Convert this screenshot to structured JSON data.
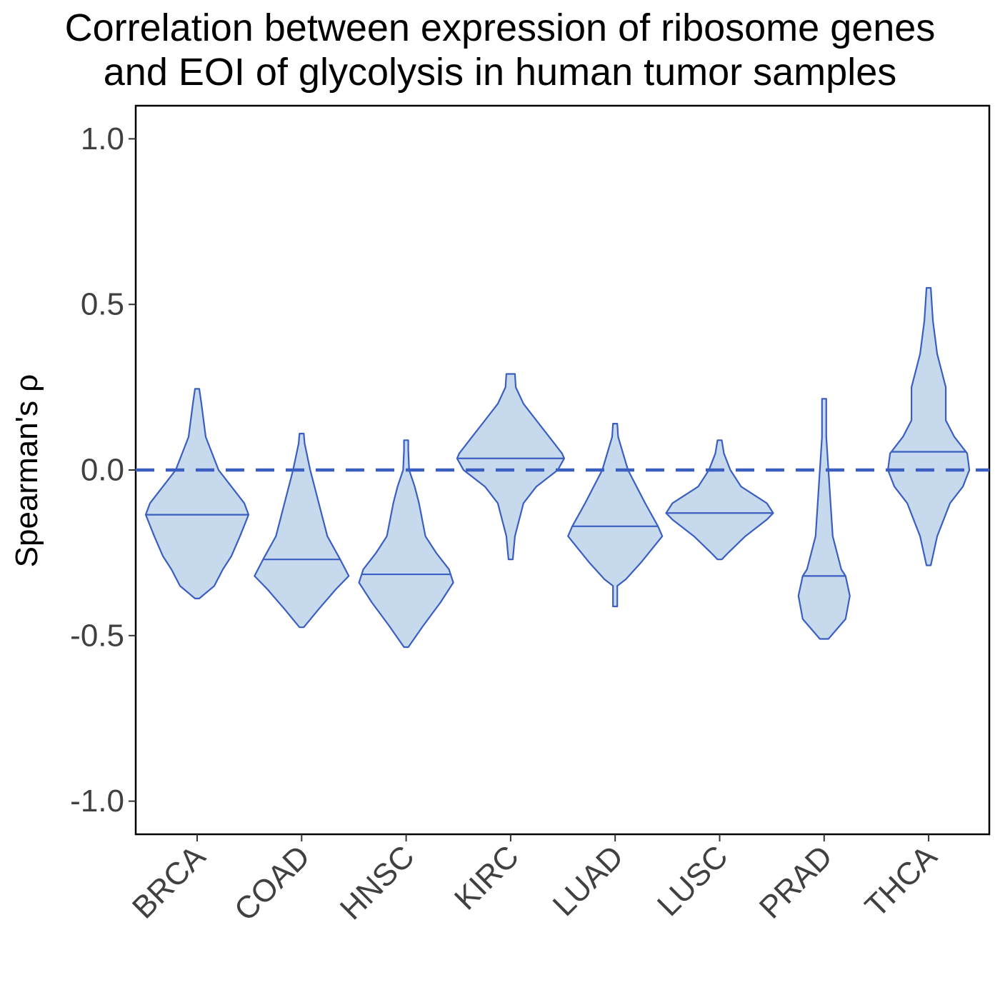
{
  "chart_data": {
    "type": "violin",
    "title_lines": [
      "Correlation between expression of ribosome genes",
      "and EOI of glycolysis in human tumor samples"
    ],
    "xlabel": "",
    "ylabel": "Spearman's  ρ",
    "ylim": [
      -1.1,
      1.1
    ],
    "yticks": [
      1.0,
      0.5,
      0.0,
      -0.5,
      -1.0
    ],
    "ytick_labels": [
      "1.0",
      "0.5",
      "0.0",
      "-0.5",
      "-1.0"
    ],
    "reference_line": {
      "y": 0.0,
      "style": "dashed"
    },
    "grid": false,
    "colors": {
      "fill": "#c6d9ed",
      "stroke": "#3a5fc0",
      "reference_line": "#3a5fc0",
      "tick_text": "#404040"
    },
    "categories": [
      "BRCA",
      "COAD",
      "HNSC",
      "KIRC",
      "LUAD",
      "LUSC",
      "PRAD",
      "THCA"
    ],
    "series": [
      {
        "category": "BRCA",
        "median": -0.135,
        "profile": [
          [
            0.245,
            0.005
          ],
          [
            0.2,
            0.01
          ],
          [
            0.1,
            0.02
          ],
          [
            0.0,
            0.05
          ],
          [
            -0.05,
            0.08
          ],
          [
            -0.1,
            0.11
          ],
          [
            -0.135,
            0.12
          ],
          [
            -0.2,
            0.1
          ],
          [
            -0.26,
            0.08
          ],
          [
            -0.3,
            0.06
          ],
          [
            -0.35,
            0.04
          ],
          [
            -0.388,
            0.005
          ]
        ]
      },
      {
        "category": "COAD",
        "median": -0.27,
        "profile": [
          [
            0.11,
            0.005
          ],
          [
            0.08,
            0.007
          ],
          [
            0.0,
            0.02
          ],
          [
            -0.1,
            0.04
          ],
          [
            -0.2,
            0.06
          ],
          [
            -0.27,
            0.09
          ],
          [
            -0.32,
            0.11
          ],
          [
            -0.36,
            0.08
          ],
          [
            -0.42,
            0.04
          ],
          [
            -0.475,
            0.005
          ]
        ]
      },
      {
        "category": "HNSC",
        "median": -0.315,
        "profile": [
          [
            0.09,
            0.005
          ],
          [
            0.06,
            0.005
          ],
          [
            0.0,
            0.007
          ],
          [
            -0.05,
            0.02
          ],
          [
            -0.1,
            0.03
          ],
          [
            -0.2,
            0.045
          ],
          [
            -0.25,
            0.07
          ],
          [
            -0.3,
            0.1
          ],
          [
            -0.34,
            0.11
          ],
          [
            -0.4,
            0.08
          ],
          [
            -0.47,
            0.04
          ],
          [
            -0.535,
            0.005
          ]
        ]
      },
      {
        "category": "KIRC",
        "median": 0.035,
        "profile": [
          [
            0.29,
            0.01
          ],
          [
            0.25,
            0.012
          ],
          [
            0.2,
            0.03
          ],
          [
            0.15,
            0.06
          ],
          [
            0.1,
            0.09
          ],
          [
            0.05,
            0.12
          ],
          [
            0.035,
            0.125
          ],
          [
            0.0,
            0.11
          ],
          [
            -0.05,
            0.06
          ],
          [
            -0.1,
            0.03
          ],
          [
            -0.2,
            0.01
          ],
          [
            -0.27,
            0.005
          ]
        ]
      },
      {
        "category": "LUAD",
        "median": -0.17,
        "profile": [
          [
            0.14,
            0.005
          ],
          [
            0.1,
            0.007
          ],
          [
            0.0,
            0.03
          ],
          [
            -0.1,
            0.07
          ],
          [
            -0.17,
            0.1
          ],
          [
            -0.2,
            0.11
          ],
          [
            -0.28,
            0.06
          ],
          [
            -0.33,
            0.025
          ],
          [
            -0.35,
            0.005
          ],
          [
            -0.412,
            0.005
          ]
        ]
      },
      {
        "category": "LUSC",
        "median": -0.13,
        "profile": [
          [
            0.09,
            0.005
          ],
          [
            0.05,
            0.01
          ],
          [
            0.0,
            0.025
          ],
          [
            -0.05,
            0.05
          ],
          [
            -0.1,
            0.11
          ],
          [
            -0.13,
            0.125
          ],
          [
            -0.15,
            0.11
          ],
          [
            -0.2,
            0.06
          ],
          [
            -0.25,
            0.02
          ],
          [
            -0.27,
            0.005
          ]
        ]
      },
      {
        "category": "PRAD",
        "median": -0.32,
        "profile": [
          [
            0.215,
            0.005
          ],
          [
            0.1,
            0.005
          ],
          [
            0.0,
            0.01
          ],
          [
            -0.1,
            0.015
          ],
          [
            -0.2,
            0.02
          ],
          [
            -0.3,
            0.04
          ],
          [
            -0.32,
            0.05
          ],
          [
            -0.38,
            0.06
          ],
          [
            -0.45,
            0.05
          ],
          [
            -0.51,
            0.01
          ]
        ]
      },
      {
        "category": "THCA",
        "median": 0.055,
        "profile": [
          [
            0.55,
            0.005
          ],
          [
            0.45,
            0.01
          ],
          [
            0.35,
            0.02
          ],
          [
            0.25,
            0.04
          ],
          [
            0.15,
            0.04
          ],
          [
            0.1,
            0.06
          ],
          [
            0.05,
            0.09
          ],
          [
            0.0,
            0.095
          ],
          [
            -0.05,
            0.08
          ],
          [
            -0.1,
            0.05
          ],
          [
            -0.2,
            0.02
          ],
          [
            -0.288,
            0.005
          ]
        ]
      }
    ]
  }
}
